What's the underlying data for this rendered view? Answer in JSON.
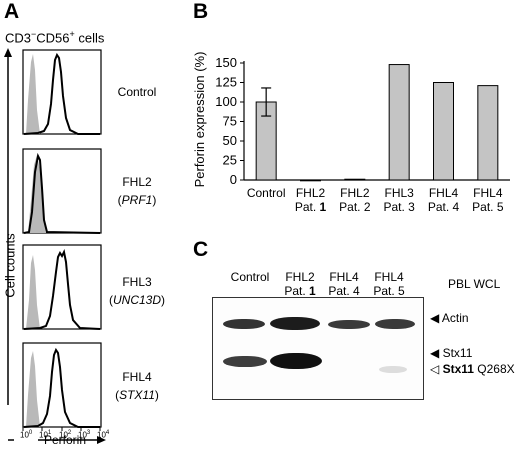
{
  "panel_a": {
    "letter": "A",
    "title_pre": "CD3",
    "title_sup1": "−",
    "title_mid": "CD56",
    "title_sup2": "+",
    "title_post": " cells",
    "ylabel": "Cell counts",
    "xlabel": "Perforin",
    "x_ticks": [
      {
        "base": "10",
        "exp": "0"
      },
      {
        "base": "10",
        "exp": "1"
      },
      {
        "base": "10",
        "exp": "2"
      },
      {
        "base": "10",
        "exp": "3"
      },
      {
        "base": "10",
        "exp": "4"
      }
    ],
    "rows": [
      {
        "label": "Control",
        "sublabel": ""
      },
      {
        "label": "FHL2",
        "sublabel": "PRF1"
      },
      {
        "label": "FHL3",
        "sublabel": "UNC13D"
      },
      {
        "label": "FHL4",
        "sublabel": "STX11"
      }
    ]
  },
  "panel_b": {
    "letter": "B"
  },
  "panel_c": {
    "letter": "C",
    "lanes": [
      {
        "label": "Control",
        "sub": "",
        "sub_num": ""
      },
      {
        "label": "FHL2",
        "sub": "Pat. ",
        "sub_num": "1"
      },
      {
        "label": "FHL4",
        "sub": "Pat. 4",
        "sub_num": ""
      },
      {
        "label": "FHL4",
        "sub": "Pat. 5",
        "sub_num": ""
      }
    ],
    "header_right": "PBL WCL",
    "band_labels": {
      "actin": "Actin",
      "stx11": "Stx11",
      "stx11_mut_bold": "Stx11",
      "stx11_mut_rest": " Q268X"
    },
    "arrow_filled": "◀",
    "arrow_open": "◁"
  },
  "chart_data": [
    {
      "type": "bar",
      "ylabel": "Perforin expression (%)",
      "ylim": [
        0,
        150
      ],
      "yticks": [
        0,
        25,
        50,
        75,
        100,
        125,
        150
      ],
      "categories": [
        {
          "line1": "Control",
          "line2": ""
        },
        {
          "line1": "FHL2",
          "line2": "Pat. 1"
        },
        {
          "line1": "FHL2",
          "line2": "Pat. 2"
        },
        {
          "line1": "FHL3",
          "line2": "Pat. 3"
        },
        {
          "line1": "FHL4",
          "line2": "Pat. 4"
        },
        {
          "line1": "FHL4",
          "line2": "Pat. 5"
        }
      ],
      "values": [
        100,
        0,
        1,
        148,
        125,
        121
      ],
      "error": [
        18,
        0,
        0,
        0,
        0,
        0
      ],
      "bar_color": "#c4c4c4"
    }
  ]
}
